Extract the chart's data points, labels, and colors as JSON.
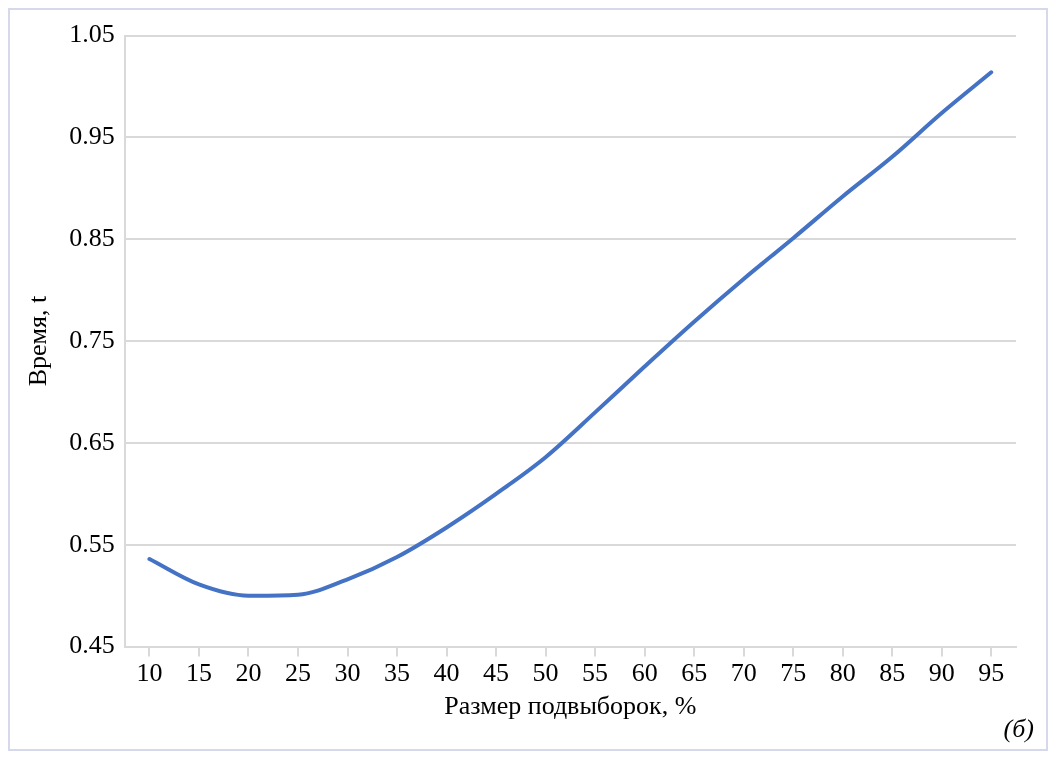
{
  "chart_data": {
    "type": "line",
    "xlabel": "Размер подвыборок, %",
    "ylabel": "Время, t",
    "categories": [
      "10",
      "15",
      "20",
      "25",
      "30",
      "35",
      "40",
      "45",
      "50",
      "55",
      "60",
      "65",
      "70",
      "75",
      "80",
      "85",
      "90",
      "95"
    ],
    "series": [
      {
        "color": "#4472c4",
        "values": [
          0.536,
          0.511,
          0.5,
          0.501,
          0.516,
          0.538,
          0.567,
          0.6,
          0.636,
          0.68,
          0.725,
          0.769,
          0.811,
          0.851,
          0.892,
          0.931,
          0.974,
          1.014
        ]
      }
    ],
    "ylim": [
      0.45,
      1.05
    ],
    "yticks": [
      0.45,
      0.55,
      0.65,
      0.75,
      0.85,
      0.95,
      1.05
    ],
    "grid": "y",
    "legend": false,
    "marker": "none",
    "line_style": "solid",
    "annotations": [
      "(б)"
    ]
  }
}
